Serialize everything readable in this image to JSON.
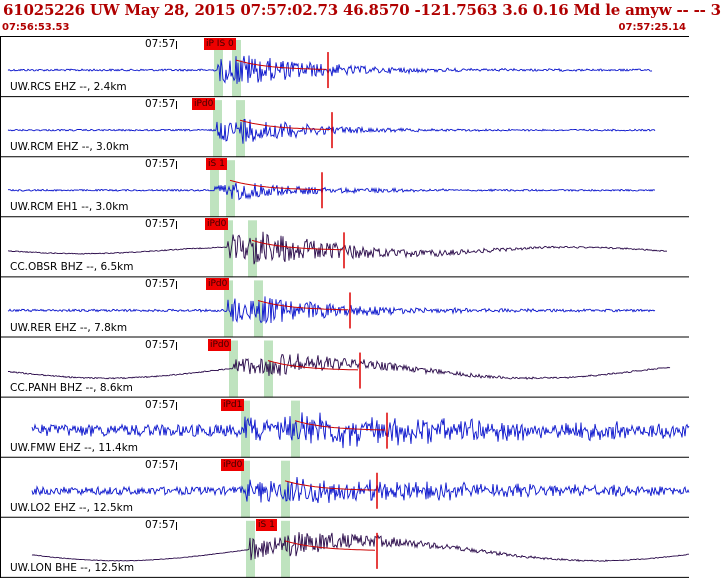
{
  "header": {
    "title": "61025226 UW May 28, 2015 07:57:02.73   46.8570 -121.7563  3.6 0.16 Md le amyw -- --    3",
    "start_time": "07:56:53.53",
    "end_time": "07:57:25.14"
  },
  "colors": {
    "blue_trace": "#0a14cc",
    "dark_trace": "#2a0a4a",
    "pick_red": "#ee0000",
    "green_band": "#bfe3bf",
    "header_red": "#b00000"
  },
  "traces": [
    {
      "label": "UW.RCS EHZ --, 2.4km",
      "time": "07:57",
      "pick": "iP IS 0",
      "color": "blue"
    },
    {
      "label": "UW.RCM EHZ --, 3.0km",
      "time": "07:57",
      "pick": "iPd0",
      "color": "blue"
    },
    {
      "label": "UW.RCM EH1 --, 3.0km",
      "time": "07:57",
      "pick": "iS 1",
      "color": "blue"
    },
    {
      "label": "CC.OBSR BHZ --, 6.5km",
      "time": "07:57",
      "pick": "iPd0",
      "color": "dark"
    },
    {
      "label": "UW.RER EHZ --, 7.8km",
      "time": "07:57",
      "pick": "iPd0",
      "color": "blue"
    },
    {
      "label": "CC.PANH BHZ --, 8.6km",
      "time": "07:57",
      "pick": "iPd0",
      "color": "dark"
    },
    {
      "label": "UW.FMW EHZ --, 11.4km",
      "time": "07:57",
      "pick": "iPd1",
      "color": "blue"
    },
    {
      "label": "UW.LO2 EHZ --, 12.5km",
      "time": "07:57",
      "pick": "iPd0",
      "color": "blue"
    },
    {
      "label": "UW.LON BHE --, 12.5km",
      "time": "07:57",
      "pick": "iS 1",
      "color": "dark"
    }
  ]
}
